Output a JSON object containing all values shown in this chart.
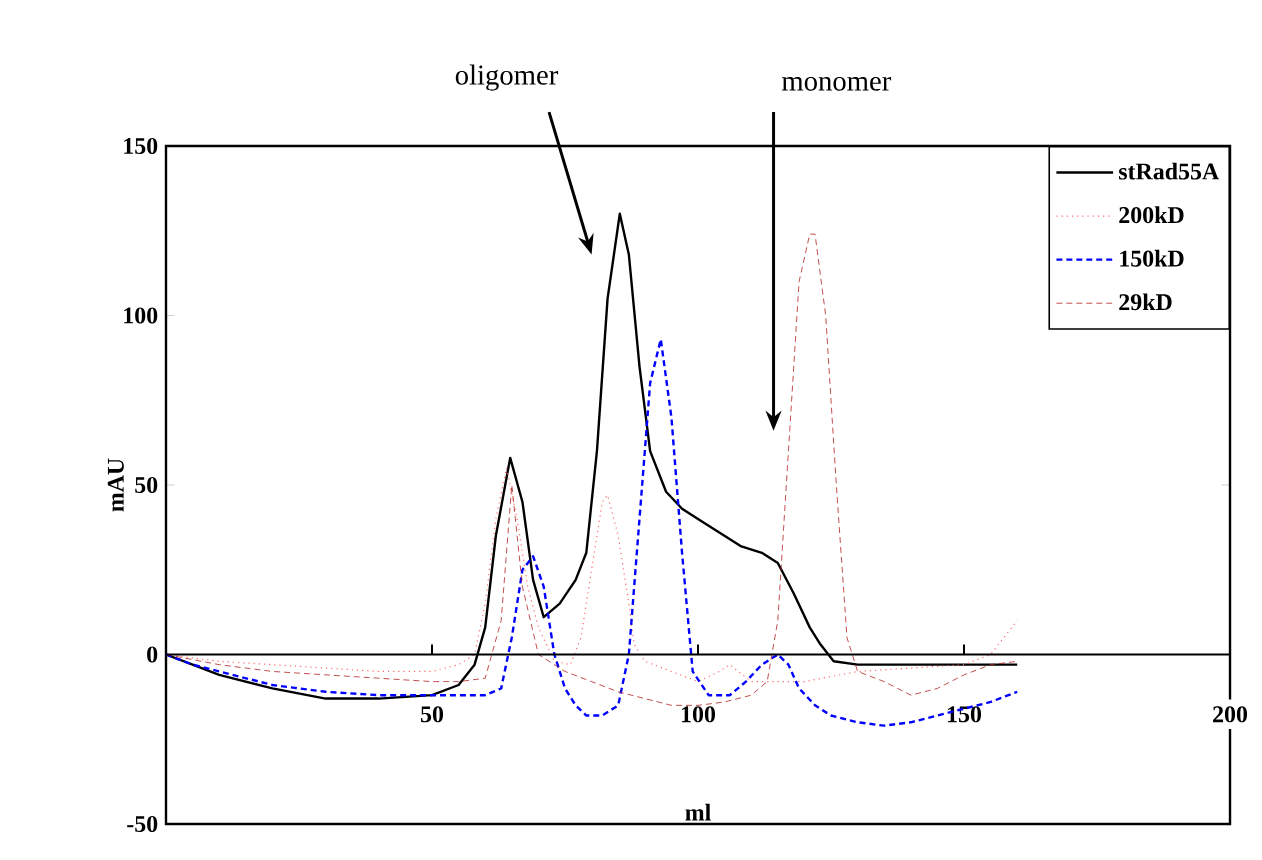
{
  "chart_data": {
    "type": "line",
    "xlabel": "ml",
    "ylabel": "mAU",
    "xlim": [
      0,
      200
    ],
    "ylim": [
      -50,
      150
    ],
    "xticks": [
      50,
      100,
      150,
      200
    ],
    "yticks": [
      -50,
      0,
      50,
      100,
      150
    ],
    "legend": "top right",
    "grid": false,
    "marker": "none",
    "annotations": [
      "oligomer",
      "monomer"
    ],
    "series": [
      {
        "name": "stRad55A",
        "color": "#000000",
        "line_style": "solid",
        "x": [
          0,
          5,
          10,
          20,
          30,
          40,
          50,
          55,
          58,
          60,
          62,
          64.7,
          67,
          69,
          71,
          74,
          77,
          79,
          81,
          83,
          85.3,
          87,
          89,
          91,
          94,
          97,
          100,
          104,
          108,
          112,
          115,
          118,
          121,
          123,
          125.5,
          130,
          140,
          150,
          160
        ],
        "values": [
          0,
          -3,
          -6,
          -10,
          -13,
          -13,
          -12,
          -9,
          -3,
          8,
          35,
          58,
          45,
          22,
          11,
          15,
          22,
          30,
          60,
          105,
          130,
          118,
          85,
          60,
          48,
          43,
          40,
          36,
          32,
          30,
          27,
          18,
          8,
          3,
          -2,
          -3,
          -3,
          -3,
          -3
        ]
      },
      {
        "name": "200kD",
        "color": "#ff6666",
        "line_style": "dotted",
        "x": [
          0,
          10,
          20,
          30,
          40,
          50,
          55,
          58,
          60,
          62,
          64,
          66,
          68,
          70,
          73,
          76,
          78,
          80,
          82,
          83,
          85,
          87,
          88,
          90,
          95,
          100,
          104,
          106,
          110,
          115,
          120,
          130,
          140,
          150,
          155,
          160
        ],
        "values": [
          0,
          -2,
          -3,
          -4,
          -5,
          -5,
          -3,
          0,
          15,
          40,
          55,
          40,
          20,
          8,
          -2,
          -3,
          5,
          25,
          45,
          47,
          35,
          15,
          3,
          -2,
          -5,
          -8,
          -5,
          -3,
          -8,
          -8,
          -8,
          -5,
          -4,
          -3,
          0,
          10
        ]
      },
      {
        "name": "150kD",
        "color": "#0000ff",
        "line_style": "dashed",
        "x": [
          0,
          5,
          10,
          20,
          30,
          40,
          50,
          55,
          60,
          63,
          65,
          67,
          69,
          71,
          73,
          75,
          77,
          79,
          82,
          85,
          87,
          89,
          91,
          93,
          95,
          97,
          99,
          102,
          106,
          109,
          112,
          115,
          117,
          119,
          122,
          125,
          130,
          135,
          140,
          145,
          150,
          155,
          160
        ],
        "values": [
          0,
          -3,
          -5,
          -9,
          -11,
          -12,
          -12,
          -12,
          -12,
          -10,
          5,
          25,
          29,
          20,
          0,
          -10,
          -15,
          -18,
          -18,
          -15,
          0,
          40,
          80,
          93,
          70,
          30,
          -5,
          -12,
          -12,
          -8,
          -3,
          0,
          -3,
          -10,
          -15,
          -18,
          -20,
          -21,
          -20,
          -18,
          -16,
          -14,
          -11
        ]
      },
      {
        "name": "29kD",
        "color": "#b22222",
        "line_style": "dashed",
        "x": [
          0,
          10,
          20,
          30,
          40,
          50,
          55,
          60,
          63,
          65,
          67,
          70,
          75,
          80,
          85,
          90,
          95,
          100,
          105,
          110,
          113,
          115,
          117,
          119,
          121,
          122,
          124,
          126,
          128,
          130,
          135,
          140,
          145,
          150,
          155,
          160
        ],
        "values": [
          0,
          -3,
          -5,
          -6,
          -7,
          -8,
          -8,
          -7,
          10,
          50,
          20,
          0,
          -5,
          -8,
          -11,
          -13,
          -15,
          -15,
          -14,
          -12,
          -8,
          10,
          60,
          110,
          124,
          124,
          100,
          50,
          5,
          -5,
          -8,
          -12,
          -10,
          -6,
          -3,
          -2
        ]
      }
    ]
  }
}
